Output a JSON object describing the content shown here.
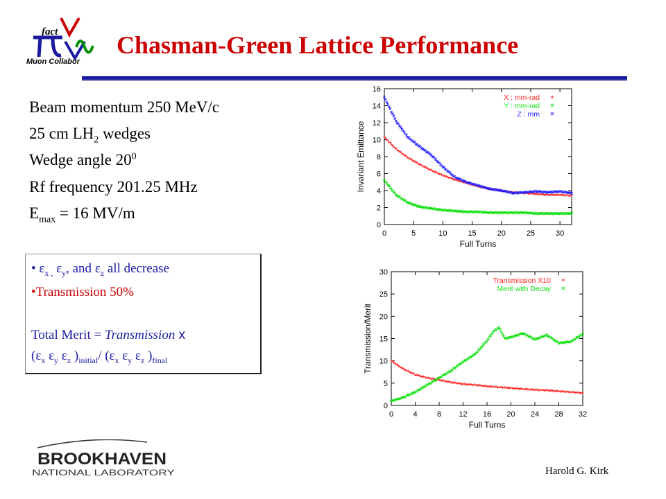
{
  "slide": {
    "title": "Chasman-Green Lattice Performance",
    "logo_top_text": "Muon Collabor",
    "logo_fact": "fact",
    "parameters": {
      "momentum": "Beam momentum 250 MeV/c",
      "wedge_pre": "25 cm LH",
      "wedge_sub": "2",
      "wedge_post": " wedges",
      "angle_pre": "Wedge angle 20",
      "angle_sup": "0",
      "rf": "Rf frequency 201.25 MHz",
      "emax_pre": "E",
      "emax_sub": "max",
      "emax_post": " = 16 MV/m"
    },
    "summary": {
      "bullet1": {
        "eps": "ε",
        "sub_x": "x ,",
        "sub_y": "y",
        "mid": ", and ",
        "sub_z": "z",
        "tail": " all decrease"
      },
      "bullet2": "Transmission 50%",
      "merit_pre": "Total Merit = ",
      "merit_italic": "Transmission",
      "merit_x": " x",
      "merit_line2": {
        "open": "(",
        "eps": "ε",
        "sx": "x",
        "sy": "y",
        "sz": "z",
        "close": ")",
        "initial": "initial",
        "slash": "/ (",
        "final": "final"
      }
    },
    "footer_author": "Harold G. Kirk",
    "footer_logo_main": "BROOKHAVEN",
    "footer_logo_sub": "NATIONAL LABORATORY"
  },
  "chart_data": [
    {
      "type": "scatter",
      "xlabel": "Full Turns",
      "ylabel": "Invariant Emittance",
      "xlim": [
        0,
        32
      ],
      "ylim": [
        0,
        16
      ],
      "xticks": [
        "0",
        "5",
        "10",
        "15",
        "20",
        "25",
        "30"
      ],
      "yticks": [
        "0",
        "2",
        "4",
        "6",
        "8",
        "10",
        "12",
        "14",
        "16"
      ],
      "legend_position": "top-right",
      "series": [
        {
          "name": "X : mm-rad",
          "color": "#ff2020",
          "marker": "+",
          "x": [
            0,
            2,
            4,
            6,
            8,
            10,
            12,
            14,
            16,
            18,
            20,
            22,
            24,
            26,
            28,
            30,
            32
          ],
          "y": [
            10.3,
            8.9,
            7.9,
            7.1,
            6.4,
            5.8,
            5.3,
            4.9,
            4.5,
            4.2,
            4.0,
            3.8,
            3.7,
            3.6,
            3.5,
            3.5,
            3.4
          ]
        },
        {
          "name": "Y : mm-rad",
          "color": "#10e010",
          "marker": "×",
          "x": [
            0,
            2,
            4,
            6,
            8,
            10,
            12,
            14,
            16,
            18,
            20,
            22,
            24,
            26,
            28,
            30,
            32
          ],
          "y": [
            5.2,
            3.5,
            2.6,
            2.1,
            1.9,
            1.7,
            1.6,
            1.5,
            1.5,
            1.4,
            1.4,
            1.4,
            1.4,
            1.3,
            1.3,
            1.3,
            1.3
          ]
        },
        {
          "name": "Z : mm",
          "color": "#2020ff",
          "marker": "×",
          "x": [
            0,
            2,
            4,
            6,
            8,
            10,
            12,
            14,
            16,
            18,
            20,
            22,
            24,
            26,
            28,
            30,
            32
          ],
          "y": [
            15.0,
            12.2,
            10.3,
            9.2,
            8.2,
            6.8,
            5.6,
            5.0,
            4.6,
            4.2,
            4.0,
            3.7,
            3.8,
            3.9,
            3.8,
            3.9,
            3.7
          ]
        }
      ]
    },
    {
      "type": "scatter",
      "xlabel": "Full Turns",
      "ylabel": "Transmission/Merit",
      "xlim": [
        0,
        32
      ],
      "ylim": [
        0,
        30
      ],
      "xticks": [
        "0",
        "4",
        "8",
        "12",
        "16",
        "20",
        "24",
        "28",
        "32"
      ],
      "yticks": [
        "0",
        "5",
        "10",
        "15",
        "20",
        "25",
        "30"
      ],
      "legend_position": "top-right",
      "series": [
        {
          "name": "Transmission X10",
          "color": "#ff2020",
          "marker": "+",
          "x": [
            0,
            2,
            4,
            6,
            8,
            10,
            12,
            14,
            16,
            18,
            20,
            22,
            24,
            26,
            28,
            30,
            32
          ],
          "y": [
            10.0,
            8.2,
            6.9,
            6.2,
            5.7,
            5.2,
            4.8,
            4.6,
            4.3,
            4.1,
            3.9,
            3.7,
            3.5,
            3.4,
            3.2,
            3.0,
            2.8
          ]
        },
        {
          "name": "Merit with Decay",
          "color": "#10e010",
          "marker": "×",
          "x": [
            0,
            2,
            4,
            6,
            8,
            10,
            12,
            14,
            16,
            17,
            18,
            19,
            20,
            22,
            24,
            26,
            28,
            30,
            32
          ],
          "y": [
            1.0,
            1.8,
            3.0,
            4.6,
            6.2,
            7.8,
            9.8,
            11.5,
            14.5,
            16.5,
            17.5,
            15.0,
            15.3,
            16.2,
            14.8,
            15.8,
            14.0,
            14.3,
            16.0
          ]
        }
      ]
    }
  ]
}
